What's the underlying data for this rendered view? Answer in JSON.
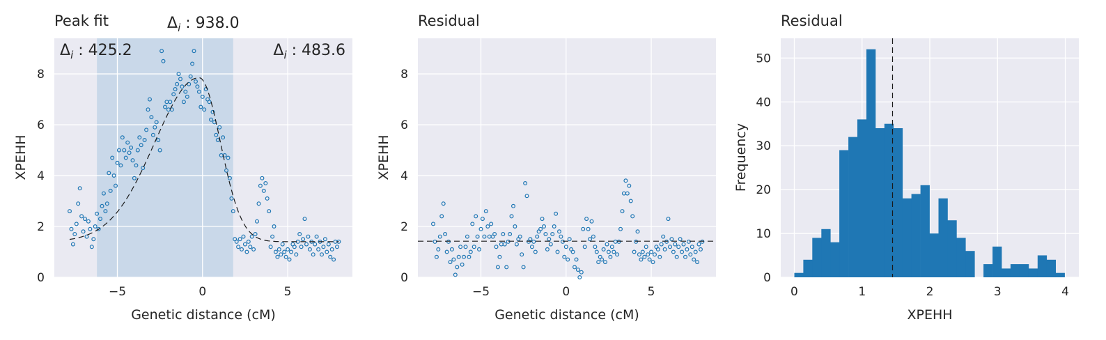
{
  "colors": {
    "points": "#1f77b4",
    "bars": "#1f77b4",
    "axes_bg": "#eaeaf2",
    "shade": "#c3d5e8",
    "line": "#1a1a1a"
  },
  "chart_data": [
    {
      "type": "scatter",
      "title": "Peak fit",
      "xlabel": "Genetic distance (cM)",
      "ylabel": "XPEHH",
      "xlim": [
        -8.7,
        8.8
      ],
      "ylim": [
        0,
        9.4
      ],
      "xticks": [
        -5,
        0,
        5
      ],
      "yticks": [
        0,
        2,
        4,
        6,
        8
      ],
      "xtick_labels": [
        "−5",
        "0",
        "5"
      ],
      "ytick_labels": [
        "0",
        "2",
        "4",
        "6",
        "8"
      ],
      "grid": true,
      "shaded_region": [
        -6.2,
        1.8
      ],
      "fit_curve": {
        "baseline": 1.4,
        "peak_x": -0.2,
        "peak_height": 6.45,
        "width_left": 2.6,
        "width_right": 1.25,
        "x_range": [
          -7.8,
          8.0
        ]
      },
      "annotations": [
        {
          "math": "Δ",
          "sub": "i",
          "rest": " : 938.0",
          "position": "top-center"
        },
        {
          "math": "Δ",
          "sub": "i",
          "rest": " : 425.2",
          "position": "top-left"
        },
        {
          "math": "Δ",
          "sub": "i",
          "rest": " : 483.6",
          "position": "top-right"
        }
      ],
      "points": [
        [
          -7.8,
          2.6
        ],
        [
          -7.7,
          1.9
        ],
        [
          -7.6,
          1.3
        ],
        [
          -7.5,
          1.7
        ],
        [
          -7.4,
          2.1
        ],
        [
          -7.3,
          2.9
        ],
        [
          -7.2,
          3.5
        ],
        [
          -7.1,
          2.4
        ],
        [
          -7.0,
          1.8
        ],
        [
          -6.9,
          2.3
        ],
        [
          -6.8,
          1.6
        ],
        [
          -6.7,
          2.2
        ],
        [
          -6.6,
          1.9
        ],
        [
          -6.5,
          1.2
        ],
        [
          -6.4,
          1.5
        ],
        [
          -6.3,
          2.0
        ],
        [
          -6.2,
          2.5
        ],
        [
          -6.1,
          1.9
        ],
        [
          -6.0,
          2.3
        ],
        [
          -5.9,
          2.8
        ],
        [
          -5.8,
          3.3
        ],
        [
          -5.7,
          2.6
        ],
        [
          -5.6,
          2.9
        ],
        [
          -5.5,
          4.1
        ],
        [
          -5.4,
          3.4
        ],
        [
          -5.3,
          4.7
        ],
        [
          -5.2,
          4.0
        ],
        [
          -5.1,
          3.6
        ],
        [
          -5.0,
          4.5
        ],
        [
          -4.9,
          5.0
        ],
        [
          -4.8,
          4.4
        ],
        [
          -4.7,
          5.5
        ],
        [
          -4.6,
          5.0
        ],
        [
          -4.5,
          4.7
        ],
        [
          -4.4,
          5.3
        ],
        [
          -4.3,
          4.9
        ],
        [
          -4.2,
          5.1
        ],
        [
          -4.1,
          4.6
        ],
        [
          -4.0,
          3.9
        ],
        [
          -3.9,
          4.4
        ],
        [
          -3.8,
          5.0
        ],
        [
          -3.7,
          5.5
        ],
        [
          -3.6,
          5.2
        ],
        [
          -3.5,
          4.3
        ],
        [
          -3.4,
          5.4
        ],
        [
          -3.3,
          5.8
        ],
        [
          -3.2,
          6.6
        ],
        [
          -3.1,
          7.0
        ],
        [
          -3.0,
          6.3
        ],
        [
          -2.9,
          5.6
        ],
        [
          -2.8,
          5.9
        ],
        [
          -2.7,
          6.1
        ],
        [
          -2.6,
          5.4
        ],
        [
          -2.5,
          5.0
        ],
        [
          -2.4,
          8.9
        ],
        [
          -2.3,
          8.5
        ],
        [
          -2.2,
          6.7
        ],
        [
          -2.1,
          6.9
        ],
        [
          -2.0,
          6.6
        ],
        [
          -1.9,
          6.9
        ],
        [
          -1.8,
          6.6
        ],
        [
          -1.7,
          7.2
        ],
        [
          -1.6,
          7.4
        ],
        [
          -1.5,
          7.6
        ],
        [
          -1.4,
          8.0
        ],
        [
          -1.3,
          7.8
        ],
        [
          -1.2,
          7.5
        ],
        [
          -1.1,
          6.9
        ],
        [
          -1.0,
          7.3
        ],
        [
          -0.9,
          7.1
        ],
        [
          -0.8,
          7.6
        ],
        [
          -0.7,
          7.9
        ],
        [
          -0.6,
          8.4
        ],
        [
          -0.5,
          8.9
        ],
        [
          -0.4,
          7.7
        ],
        [
          -0.3,
          7.5
        ],
        [
          -0.2,
          7.3
        ],
        [
          -0.1,
          6.7
        ],
        [
          0.0,
          7.1
        ],
        [
          0.1,
          6.6
        ],
        [
          0.2,
          7.4
        ],
        [
          0.3,
          7.0
        ],
        [
          0.4,
          6.9
        ],
        [
          0.5,
          6.2
        ],
        [
          0.6,
          6.5
        ],
        [
          0.7,
          6.1
        ],
        [
          0.8,
          5.6
        ],
        [
          0.9,
          5.4
        ],
        [
          1.0,
          5.9
        ],
        [
          1.1,
          4.8
        ],
        [
          1.2,
          5.5
        ],
        [
          1.3,
          4.8
        ],
        [
          1.4,
          4.2
        ],
        [
          1.5,
          4.7
        ],
        [
          1.6,
          3.9
        ],
        [
          1.7,
          3.1
        ],
        [
          1.8,
          2.6
        ],
        [
          1.9,
          1.5
        ],
        [
          2.0,
          1.4
        ],
        [
          2.1,
          1.2
        ],
        [
          2.2,
          1.5
        ],
        [
          2.3,
          1.1
        ],
        [
          2.4,
          1.6
        ],
        [
          2.5,
          1.3
        ],
        [
          2.6,
          1.0
        ],
        [
          2.7,
          1.4
        ],
        [
          2.8,
          1.2
        ],
        [
          2.9,
          1.6
        ],
        [
          3.0,
          1.1
        ],
        [
          3.1,
          1.7
        ],
        [
          3.2,
          2.2
        ],
        [
          3.3,
          2.9
        ],
        [
          3.4,
          3.6
        ],
        [
          3.5,
          3.9
        ],
        [
          3.6,
          3.4
        ],
        [
          3.7,
          3.7
        ],
        [
          3.8,
          3.1
        ],
        [
          3.9,
          2.6
        ],
        [
          4.0,
          1.2
        ],
        [
          4.1,
          1.6
        ],
        [
          4.2,
          2.0
        ],
        [
          4.3,
          1.0
        ],
        [
          4.4,
          0.8
        ],
        [
          4.5,
          1.1
        ],
        [
          4.6,
          0.9
        ],
        [
          4.7,
          1.3
        ],
        [
          4.8,
          1.0
        ],
        [
          4.9,
          0.8
        ],
        [
          5.0,
          1.1
        ],
        [
          5.1,
          0.7
        ],
        [
          5.2,
          1.0
        ],
        [
          5.3,
          1.3
        ],
        [
          5.4,
          1.2
        ],
        [
          5.5,
          0.9
        ],
        [
          5.6,
          1.4
        ],
        [
          5.7,
          1.7
        ],
        [
          5.8,
          1.2
        ],
        [
          5.9,
          1.5
        ],
        [
          6.0,
          2.3
        ],
        [
          6.1,
          1.3
        ],
        [
          6.2,
          1.6
        ],
        [
          6.3,
          1.1
        ],
        [
          6.4,
          1.4
        ],
        [
          6.5,
          0.9
        ],
        [
          6.6,
          1.3
        ],
        [
          6.7,
          1.6
        ],
        [
          6.8,
          1.1
        ],
        [
          6.9,
          1.4
        ],
        [
          7.0,
          0.9
        ],
        [
          7.1,
          1.2
        ],
        [
          7.2,
          1.5
        ],
        [
          7.3,
          1.0
        ],
        [
          7.4,
          1.3
        ],
        [
          7.5,
          0.8
        ],
        [
          7.6,
          1.1
        ],
        [
          7.7,
          0.7
        ],
        [
          7.8,
          1.4
        ],
        [
          7.9,
          1.2
        ],
        [
          8.0,
          1.4
        ]
      ]
    },
    {
      "type": "scatter",
      "title": "Residual",
      "xlabel": "Genetic distance (cM)",
      "ylabel": "XPEHH",
      "xlim": [
        -8.7,
        8.8
      ],
      "ylim": [
        0,
        9.4
      ],
      "xticks": [
        -5,
        0,
        5
      ],
      "yticks": [
        0,
        2,
        4,
        6,
        8
      ],
      "xtick_labels": [
        "−5",
        "0",
        "5"
      ],
      "ytick_labels": [
        "0",
        "2",
        "4",
        "6",
        "8"
      ],
      "grid": true,
      "hline": 1.42,
      "points": [
        [
          -7.8,
          2.1
        ],
        [
          -7.7,
          1.4
        ],
        [
          -7.6,
          0.8
        ],
        [
          -7.5,
          1.1
        ],
        [
          -7.4,
          1.6
        ],
        [
          -7.3,
          2.4
        ],
        [
          -7.2,
          2.9
        ],
        [
          -7.1,
          1.7
        ],
        [
          -7.0,
          1.0
        ],
        [
          -6.9,
          1.4
        ],
        [
          -6.8,
          0.6
        ],
        [
          -6.7,
          1.1
        ],
        [
          -6.6,
          0.7
        ],
        [
          -6.5,
          0.1
        ],
        [
          -6.4,
          0.4
        ],
        [
          -6.3,
          0.8
        ],
        [
          -6.2,
          1.2
        ],
        [
          -6.1,
          0.5
        ],
        [
          -6.0,
          0.8
        ],
        [
          -5.9,
          1.2
        ],
        [
          -5.8,
          1.6
        ],
        [
          -5.7,
          0.8
        ],
        [
          -5.6,
          1.0
        ],
        [
          -5.5,
          2.1
        ],
        [
          -5.4,
          1.2
        ],
        [
          -5.3,
          2.4
        ],
        [
          -5.2,
          1.6
        ],
        [
          -5.1,
          1.1
        ],
        [
          -5.0,
          1.9
        ],
        [
          -4.9,
          2.3
        ],
        [
          -4.8,
          1.6
        ],
        [
          -4.7,
          2.6
        ],
        [
          -4.6,
          2.0
        ],
        [
          -4.5,
          1.6
        ],
        [
          -4.4,
          2.1
        ],
        [
          -4.3,
          1.6
        ],
        [
          -4.2,
          1.7
        ],
        [
          -4.1,
          1.2
        ],
        [
          -4.0,
          0.4
        ],
        [
          -3.9,
          0.8
        ],
        [
          -3.8,
          1.3
        ],
        [
          -3.7,
          1.7
        ],
        [
          -3.6,
          1.3
        ],
        [
          -3.5,
          0.4
        ],
        [
          -3.4,
          1.4
        ],
        [
          -3.3,
          1.7
        ],
        [
          -3.2,
          2.4
        ],
        [
          -3.1,
          2.8
        ],
        [
          -3.0,
          2.0
        ],
        [
          -2.9,
          1.3
        ],
        [
          -2.8,
          1.5
        ],
        [
          -2.7,
          1.6
        ],
        [
          -2.6,
          0.9
        ],
        [
          -2.5,
          0.4
        ],
        [
          -2.4,
          3.7
        ],
        [
          -2.3,
          3.2
        ],
        [
          -2.2,
          1.4
        ],
        [
          -2.1,
          1.5
        ],
        [
          -2.0,
          1.2
        ],
        [
          -1.9,
          1.4
        ],
        [
          -1.8,
          1.0
        ],
        [
          -1.7,
          1.6
        ],
        [
          -1.6,
          1.8
        ],
        [
          -1.5,
          1.9
        ],
        [
          -1.4,
          2.3
        ],
        [
          -1.3,
          2.0
        ],
        [
          -1.2,
          1.7
        ],
        [
          -1.1,
          1.1
        ],
        [
          -1.0,
          1.5
        ],
        [
          -0.9,
          1.3
        ],
        [
          -0.8,
          1.7
        ],
        [
          -0.7,
          2.0
        ],
        [
          -0.6,
          2.5
        ],
        [
          -0.5,
          1.0
        ],
        [
          -0.4,
          1.8
        ],
        [
          -0.3,
          1.6
        ],
        [
          -0.2,
          1.4
        ],
        [
          -0.1,
          0.8
        ],
        [
          0.0,
          1.2
        ],
        [
          0.1,
          0.7
        ],
        [
          0.2,
          1.5
        ],
        [
          0.3,
          1.1
        ],
        [
          0.4,
          1.0
        ],
        [
          0.5,
          0.4
        ],
        [
          0.6,
          0.7
        ],
        [
          0.7,
          0.3
        ],
        [
          0.8,
          0.0
        ],
        [
          0.9,
          0.2
        ],
        [
          1.0,
          1.9
        ],
        [
          1.1,
          1.2
        ],
        [
          1.2,
          2.3
        ],
        [
          1.3,
          1.9
        ],
        [
          1.4,
          1.5
        ],
        [
          1.5,
          2.2
        ],
        [
          1.6,
          1.6
        ],
        [
          1.7,
          1.2
        ],
        [
          1.8,
          1.0
        ],
        [
          1.9,
          0.6
        ],
        [
          2.0,
          0.8
        ],
        [
          2.1,
          0.7
        ],
        [
          2.2,
          1.1
        ],
        [
          2.3,
          0.6
        ],
        [
          2.4,
          1.3
        ],
        [
          2.5,
          1.0
        ],
        [
          2.6,
          0.8
        ],
        [
          2.7,
          1.2
        ],
        [
          2.8,
          1.0
        ],
        [
          2.9,
          1.4
        ],
        [
          3.0,
          0.9
        ],
        [
          3.1,
          1.4
        ],
        [
          3.2,
          1.9
        ],
        [
          3.3,
          2.6
        ],
        [
          3.4,
          3.3
        ],
        [
          3.5,
          3.8
        ],
        [
          3.6,
          3.3
        ],
        [
          3.7,
          3.6
        ],
        [
          3.8,
          3.0
        ],
        [
          3.9,
          2.4
        ],
        [
          4.0,
          1.0
        ],
        [
          4.1,
          1.4
        ],
        [
          4.2,
          1.8
        ],
        [
          4.3,
          0.9
        ],
        [
          4.4,
          0.7
        ],
        [
          4.5,
          1.0
        ],
        [
          4.6,
          0.8
        ],
        [
          4.7,
          1.2
        ],
        [
          4.8,
          0.9
        ],
        [
          4.9,
          0.7
        ],
        [
          5.0,
          1.0
        ],
        [
          5.1,
          0.6
        ],
        [
          5.2,
          0.9
        ],
        [
          5.3,
          1.2
        ],
        [
          5.4,
          1.1
        ],
        [
          5.5,
          0.8
        ],
        [
          5.6,
          1.3
        ],
        [
          5.7,
          1.6
        ],
        [
          5.8,
          1.1
        ],
        [
          5.9,
          1.4
        ],
        [
          6.0,
          2.3
        ],
        [
          6.1,
          1.2
        ],
        [
          6.2,
          1.5
        ],
        [
          6.3,
          1.0
        ],
        [
          6.4,
          1.3
        ],
        [
          6.5,
          0.8
        ],
        [
          6.6,
          1.2
        ],
        [
          6.7,
          1.5
        ],
        [
          6.8,
          1.0
        ],
        [
          6.9,
          1.3
        ],
        [
          7.0,
          0.8
        ],
        [
          7.1,
          1.1
        ],
        [
          7.2,
          1.4
        ],
        [
          7.3,
          0.9
        ],
        [
          7.4,
          1.2
        ],
        [
          7.5,
          0.7
        ],
        [
          7.6,
          1.0
        ],
        [
          7.7,
          0.6
        ],
        [
          7.8,
          1.3
        ],
        [
          7.9,
          1.1
        ],
        [
          8.0,
          1.4
        ]
      ]
    },
    {
      "type": "bar",
      "title": "Residual",
      "xlabel": "XPEHH",
      "ylabel": "Frequency",
      "xlim": [
        -0.2,
        4.2
      ],
      "ylim": [
        0,
        54.5
      ],
      "xticks": [
        0,
        1,
        2,
        3,
        4
      ],
      "yticks": [
        0,
        10,
        20,
        30,
        40,
        50
      ],
      "xtick_labels": [
        "0",
        "1",
        "2",
        "3",
        "4"
      ],
      "ytick_labels": [
        "0",
        "10",
        "20",
        "30",
        "40",
        "50"
      ],
      "grid": true,
      "vline": 1.45,
      "bin_start": 0.0,
      "bin_width": 0.133,
      "values": [
        1,
        4,
        9,
        11,
        8,
        29,
        32,
        36,
        52,
        34,
        35,
        34,
        18,
        19,
        21,
        10,
        18,
        13,
        9,
        6,
        0,
        3,
        7,
        2,
        3,
        3,
        2,
        5,
        4,
        1
      ]
    }
  ]
}
